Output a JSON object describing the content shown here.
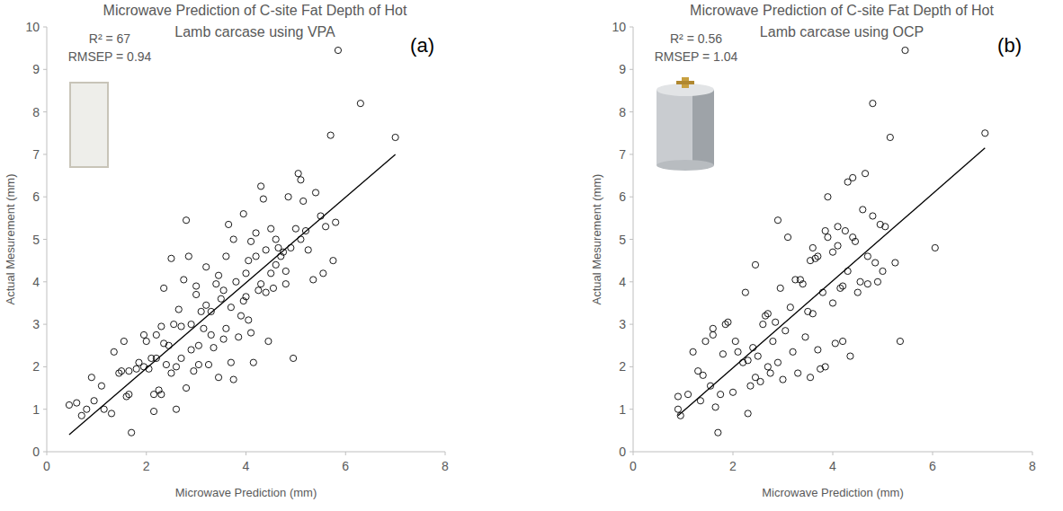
{
  "chart_data": [
    {
      "type": "scatter",
      "title": "Microwave Prediction of C-site Fat Depth of Hot Lamb carcase using VPA",
      "panel_label": "(a)",
      "annotations": [
        "R² = 67",
        "RMSEP = 0.94"
      ],
      "x_label": "Microwave Prediction (mm)",
      "y_label": "Actual Mesurement (mm)",
      "xlim": [
        0,
        8
      ],
      "xticks": [
        0,
        2,
        4,
        6,
        8
      ],
      "ylim": [
        0,
        10
      ],
      "yticks": [
        0,
        1,
        2,
        3,
        4,
        5,
        6,
        7,
        8,
        9,
        10
      ],
      "grid": false,
      "marker": "circle",
      "color": "#000000",
      "x": [
        0.45,
        0.6,
        0.7,
        0.8,
        0.95,
        0.9,
        1.1,
        1.15,
        1.3,
        1.35,
        1.45,
        1.5,
        1.55,
        1.6,
        1.65,
        1.7,
        1.65,
        1.8,
        1.85,
        1.95,
        1.95,
        2.0,
        2.05,
        2.1,
        2.15,
        2.15,
        2.2,
        2.2,
        2.25,
        2.3,
        2.3,
        2.35,
        2.35,
        2.4,
        2.45,
        2.5,
        2.5,
        2.55,
        2.6,
        2.6,
        2.65,
        2.7,
        2.7,
        2.75,
        2.8,
        2.8,
        2.85,
        2.9,
        2.9,
        2.95,
        3.0,
        3.0,
        3.05,
        3.05,
        3.1,
        3.15,
        3.2,
        3.2,
        3.25,
        3.3,
        3.3,
        3.35,
        3.4,
        3.45,
        3.45,
        3.5,
        3.55,
        3.55,
        3.6,
        3.6,
        3.65,
        3.7,
        3.7,
        3.75,
        3.75,
        3.8,
        3.85,
        3.9,
        3.95,
        3.95,
        4.0,
        4.0,
        4.05,
        4.05,
        4.1,
        4.1,
        4.15,
        4.2,
        4.2,
        4.25,
        4.3,
        4.3,
        4.35,
        4.4,
        4.4,
        4.45,
        4.5,
        4.5,
        4.55,
        4.6,
        4.6,
        4.65,
        4.7,
        4.75,
        4.8,
        4.8,
        4.85,
        4.9,
        4.95,
        5.0,
        5.05,
        5.1,
        5.1,
        5.15,
        5.2,
        5.25,
        5.35,
        5.4,
        5.5,
        5.55,
        5.6,
        5.7,
        5.75,
        5.8,
        5.85,
        6.3,
        7.0
      ],
      "values": [
        1.1,
        1.15,
        0.85,
        1.0,
        1.2,
        1.75,
        1.55,
        1.0,
        0.9,
        2.35,
        1.85,
        1.9,
        2.6,
        1.3,
        1.35,
        0.45,
        1.9,
        1.95,
        2.1,
        2.0,
        2.75,
        2.6,
        1.95,
        2.2,
        0.95,
        1.35,
        2.75,
        2.2,
        1.45,
        2.95,
        1.35,
        3.85,
        2.55,
        2.05,
        2.5,
        4.55,
        1.85,
        3.0,
        1.0,
        2.0,
        3.35,
        2.2,
        2.95,
        4.05,
        5.45,
        1.5,
        4.6,
        2.4,
        3.0,
        1.9,
        3.9,
        3.7,
        2.05,
        2.5,
        3.3,
        2.9,
        4.35,
        3.45,
        2.05,
        2.75,
        3.3,
        2.45,
        3.95,
        4.15,
        1.75,
        3.6,
        3.8,
        2.65,
        4.6,
        2.9,
        5.35,
        3.4,
        2.1,
        5.0,
        1.7,
        4.0,
        2.7,
        3.2,
        3.55,
        5.6,
        4.2,
        3.65,
        4.5,
        3.1,
        4.95,
        2.8,
        2.1,
        5.15,
        4.6,
        3.8,
        6.25,
        3.95,
        5.95,
        4.75,
        3.75,
        2.6,
        5.25,
        4.2,
        3.85,
        5.0,
        4.4,
        4.8,
        4.6,
        4.7,
        3.95,
        4.25,
        6.0,
        4.8,
        2.2,
        5.25,
        6.55,
        6.4,
        5.0,
        5.9,
        5.2,
        4.75,
        4.05,
        6.1,
        5.55,
        4.2,
        5.3,
        7.45,
        4.5,
        5.4,
        9.45,
        8.2,
        7.4
      ],
      "trendline": {
        "x": [
          0.45,
          7.0
        ],
        "values": [
          0.4,
          7.0
        ]
      }
    },
    {
      "type": "scatter",
      "title": "Microwave Prediction of C-site Fat Depth of Hot Lamb carcase using OCP",
      "panel_label": "(b)",
      "annotations": [
        "R² = 0.56",
        "RMSEP = 1.04"
      ],
      "x_label": "Microwave Prediction (mm)",
      "y_label": "Actual Mesurement (mm)",
      "xlim": [
        0,
        8
      ],
      "xticks": [
        0,
        2,
        4,
        6,
        8
      ],
      "ylim": [
        0,
        10
      ],
      "yticks": [
        0,
        1,
        2,
        3,
        4,
        5,
        6,
        7,
        8,
        9,
        10
      ],
      "grid": false,
      "marker": "circle",
      "color": "#000000",
      "x": [
        0.9,
        0.95,
        0.9,
        1.1,
        1.2,
        1.3,
        1.35,
        1.4,
        1.45,
        1.55,
        1.6,
        1.6,
        1.65,
        1.7,
        1.75,
        1.8,
        1.85,
        1.9,
        2.0,
        2.05,
        2.1,
        2.2,
        2.25,
        2.3,
        2.3,
        2.35,
        2.4,
        2.45,
        2.45,
        2.5,
        2.55,
        2.6,
        2.65,
        2.7,
        2.7,
        2.75,
        2.8,
        2.85,
        2.9,
        2.9,
        2.95,
        3.0,
        3.05,
        3.1,
        3.15,
        3.2,
        3.25,
        3.3,
        3.35,
        3.4,
        3.45,
        3.5,
        3.55,
        3.55,
        3.6,
        3.6,
        3.65,
        3.7,
        3.7,
        3.75,
        3.8,
        3.85,
        3.85,
        3.9,
        3.9,
        4.0,
        4.0,
        4.05,
        4.1,
        4.1,
        4.15,
        4.2,
        4.2,
        4.25,
        4.3,
        4.3,
        4.35,
        4.4,
        4.4,
        4.45,
        4.5,
        4.55,
        4.6,
        4.65,
        4.7,
        4.7,
        4.8,
        4.8,
        4.85,
        4.9,
        4.95,
        5.0,
        5.05,
        5.15,
        5.25,
        5.35,
        5.45,
        6.05,
        7.05
      ],
      "values": [
        1.0,
        0.85,
        1.3,
        1.35,
        2.35,
        1.9,
        1.2,
        1.8,
        2.6,
        1.55,
        2.9,
        2.75,
        1.05,
        0.45,
        1.35,
        2.3,
        3.0,
        3.05,
        1.4,
        2.6,
        2.35,
        2.1,
        3.75,
        0.9,
        2.15,
        1.55,
        2.45,
        1.75,
        4.4,
        2.25,
        1.65,
        3.0,
        3.2,
        2.0,
        3.25,
        1.85,
        2.6,
        3.05,
        2.1,
        5.45,
        3.85,
        1.7,
        2.85,
        5.05,
        3.4,
        2.35,
        4.05,
        1.85,
        4.05,
        3.95,
        2.7,
        3.3,
        4.5,
        1.75,
        4.8,
        3.25,
        4.55,
        2.4,
        4.6,
        1.95,
        3.75,
        5.2,
        2.0,
        5.05,
        6.0,
        4.7,
        3.5,
        2.55,
        5.3,
        4.85,
        3.85,
        3.9,
        2.6,
        5.2,
        6.35,
        4.25,
        2.25,
        6.45,
        5.05,
        4.95,
        3.75,
        4.0,
        5.7,
        6.55,
        4.6,
        3.95,
        5.55,
        8.2,
        4.45,
        4.0,
        5.35,
        4.25,
        5.3,
        7.4,
        4.45,
        2.6,
        9.45,
        4.8,
        7.5
      ],
      "trendline": {
        "x": [
          0.9,
          7.05
        ],
        "values": [
          0.85,
          7.15
        ]
      }
    }
  ]
}
